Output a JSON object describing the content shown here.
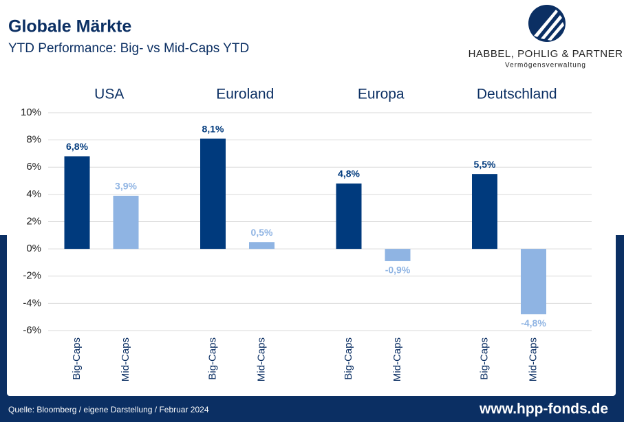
{
  "header": {
    "title": "Globale Märkte",
    "subtitle": "YTD Performance: Big- vs Mid-Caps YTD"
  },
  "logo": {
    "name": "HABBEL, POHLIG & PARTNER",
    "tagline": "Vermögensverwaltung"
  },
  "chart_data": {
    "type": "bar",
    "colors": [
      "#003a7d",
      "#8fb4e3"
    ],
    "groups": [
      {
        "name": "USA",
        "categories": [
          "Big-Caps",
          "Mid-Caps"
        ],
        "values": [
          6.8,
          3.9
        ],
        "value_labels": [
          "6,8%",
          "3,9%"
        ]
      },
      {
        "name": "Euroland",
        "categories": [
          "Big-Caps",
          "Mid-Caps"
        ],
        "values": [
          8.1,
          0.5
        ],
        "value_labels": [
          "8,1%",
          "0,5%"
        ]
      },
      {
        "name": "Europa",
        "categories": [
          "Big-Caps",
          "Mid-Caps"
        ],
        "values": [
          4.8,
          -0.9
        ],
        "value_labels": [
          "4,8%",
          "-0,9%"
        ]
      },
      {
        "name": "Deutschland",
        "categories": [
          "Big-Caps",
          "Mid-Caps"
        ],
        "values": [
          5.5,
          -4.8
        ],
        "value_labels": [
          "5,5%",
          "-4,8%"
        ]
      }
    ],
    "ylim": [
      -6,
      10
    ],
    "yticks": [
      {
        "value": -6,
        "label": "-6%"
      },
      {
        "value": -4,
        "label": "-4%"
      },
      {
        "value": -2,
        "label": "-2%"
      },
      {
        "value": 0,
        "label": "0%"
      },
      {
        "value": 2,
        "label": "2%"
      },
      {
        "value": 4,
        "label": "4%"
      },
      {
        "value": 6,
        "label": "6%"
      },
      {
        "value": 8,
        "label": "8%"
      },
      {
        "value": 10,
        "label": "10%"
      }
    ],
    "grid": true
  },
  "footer": {
    "source": "Quelle: Bloomberg / eigene Darstellung / Februar 2024",
    "website": "www.hpp-fonds.de"
  }
}
